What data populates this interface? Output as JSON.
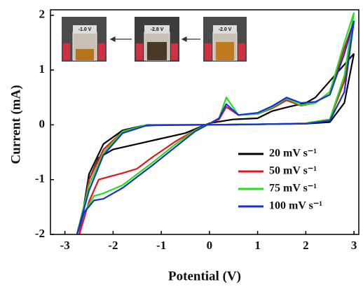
{
  "chart_data": {
    "type": "line",
    "xlabel": "Potential (V)",
    "ylabel": "Current (mA)",
    "xlim": [
      -3.3,
      3.1
    ],
    "ylim": [
      -2,
      2.1
    ],
    "xticks": [
      -3,
      -2,
      -1,
      0,
      1,
      2,
      3
    ],
    "yticks": [
      -2,
      -1,
      0,
      1,
      2
    ],
    "annotations": [
      "-1.0 V",
      "-2.8 V",
      "-2.0 V"
    ],
    "series": [
      {
        "name": "20 mV s⁻¹",
        "color": "#000000",
        "x": [
          3.0,
          2.8,
          2.5,
          2.2,
          2.0,
          1.6,
          1.3,
          1.0,
          0.5,
          0.0,
          -0.5,
          -1.0,
          -1.5,
          -2.0,
          -2.3,
          -2.5,
          -2.7,
          -2.5,
          -2.2,
          -1.8,
          -1.4,
          -1.0,
          0.0,
          1.0,
          2.0,
          2.5,
          2.8,
          3.0
        ],
        "values": [
          1.3,
          1.1,
          0.8,
          0.5,
          0.4,
          0.32,
          0.25,
          0.12,
          0.1,
          0.03,
          -0.15,
          -0.25,
          -0.35,
          -0.45,
          -0.6,
          -1.0,
          -2.0,
          -0.9,
          -0.35,
          -0.1,
          -0.02,
          0.0,
          0.0,
          0.01,
          0.02,
          0.05,
          0.4,
          1.3
        ]
      },
      {
        "name": "50 mV s⁻¹",
        "color": "#e8141b",
        "x": [
          3.0,
          2.8,
          2.5,
          2.2,
          1.9,
          1.6,
          1.3,
          1.0,
          0.6,
          0.35,
          0.2,
          0.0,
          -0.3,
          -0.7,
          -1.2,
          -1.5,
          -1.8,
          -2.1,
          -2.3,
          -2.5,
          -2.7,
          -2.5,
          -2.2,
          -1.8,
          -1.3,
          0.0,
          1.0,
          2.0,
          2.5,
          2.8,
          3.0
        ],
        "values": [
          1.9,
          1.4,
          0.6,
          0.4,
          0.35,
          0.45,
          0.3,
          0.2,
          0.18,
          0.33,
          0.1,
          0.02,
          -0.1,
          -0.3,
          -0.6,
          -0.8,
          -0.88,
          -0.95,
          -1.0,
          -1.4,
          -2.0,
          -1.0,
          -0.45,
          -0.12,
          0.0,
          0.0,
          0.01,
          0.03,
          0.1,
          0.8,
          1.9
        ]
      },
      {
        "name": "75 mV s⁻¹",
        "color": "#22e01e",
        "x": [
          3.0,
          2.8,
          2.5,
          2.2,
          1.9,
          1.6,
          1.3,
          1.0,
          0.6,
          0.35,
          0.2,
          0.0,
          -0.3,
          -0.7,
          -1.2,
          -1.5,
          -1.8,
          -2.2,
          -2.4,
          -2.6,
          -2.75,
          -2.5,
          -2.2,
          -1.8,
          -1.3,
          0.0,
          1.0,
          2.0,
          2.5,
          2.8,
          3.0
        ],
        "values": [
          2.05,
          1.5,
          0.6,
          0.4,
          0.36,
          0.48,
          0.32,
          0.2,
          0.18,
          0.5,
          0.12,
          0.02,
          -0.1,
          -0.35,
          -0.7,
          -0.9,
          -1.1,
          -1.25,
          -1.3,
          -1.6,
          -2.0,
          -1.1,
          -0.5,
          -0.12,
          0.0,
          0.0,
          0.01,
          0.03,
          0.1,
          0.9,
          2.05
        ]
      },
      {
        "name": "100 mV s⁻¹",
        "color": "#1a2ee0",
        "x": [
          3.0,
          2.8,
          2.5,
          2.2,
          1.9,
          1.6,
          1.3,
          1.0,
          0.6,
          0.35,
          0.2,
          0.0,
          -0.3,
          -0.7,
          -1.2,
          -1.5,
          -1.8,
          -2.2,
          -2.4,
          -2.6,
          -2.75,
          -2.5,
          -2.2,
          -1.8,
          -1.3,
          0.0,
          1.0,
          2.0,
          2.5,
          2.8,
          3.0
        ],
        "values": [
          1.9,
          1.3,
          0.55,
          0.42,
          0.4,
          0.5,
          0.34,
          0.22,
          0.18,
          0.38,
          0.12,
          0.02,
          -0.12,
          -0.4,
          -0.75,
          -0.95,
          -1.15,
          -1.35,
          -1.38,
          -1.6,
          -2.0,
          -1.2,
          -0.55,
          -0.15,
          -0.01,
          0.0,
          0.01,
          0.02,
          0.08,
          0.6,
          1.9
        ]
      }
    ]
  }
}
